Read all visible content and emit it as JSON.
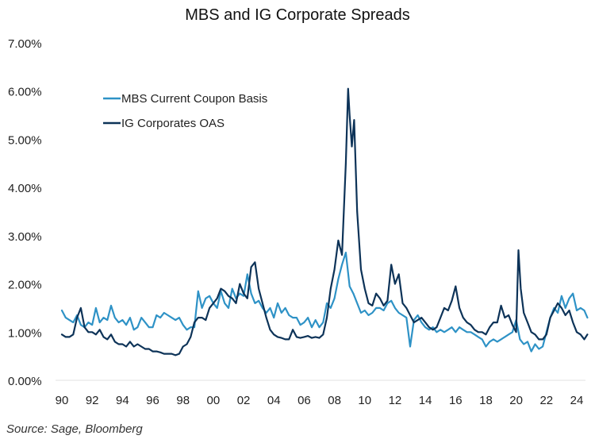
{
  "chart_data": {
    "type": "line",
    "title": "MBS and IG Corporate Spreads",
    "xlabel": "",
    "ylabel": "",
    "xlim": [
      1990,
      2024.7
    ],
    "ylim": [
      0,
      7
    ],
    "grid": false,
    "y_ticks": [
      "0.00%",
      "1.00%",
      "2.00%",
      "3.00%",
      "4.00%",
      "5.00%",
      "6.00%",
      "7.00%"
    ],
    "y_tick_values": [
      0,
      1,
      2,
      3,
      4,
      5,
      6,
      7
    ],
    "x_ticks": [
      "90",
      "92",
      "94",
      "96",
      "98",
      "00",
      "02",
      "04",
      "06",
      "08",
      "10",
      "12",
      "14",
      "16",
      "18",
      "20",
      "22",
      "24"
    ],
    "x_tick_values": [
      1990,
      1992,
      1994,
      1996,
      1998,
      2000,
      2002,
      2004,
      2006,
      2008,
      2010,
      2012,
      2014,
      2016,
      2018,
      2020,
      2022,
      2024
    ],
    "legend_position": "top-left",
    "series": [
      {
        "name": "MBS Current Coupon Basis",
        "color": "#2e92c6",
        "x": [
          1990.0,
          1990.25,
          1990.5,
          1990.75,
          1991.0,
          1991.25,
          1991.5,
          1991.75,
          1992.0,
          1992.25,
          1992.5,
          1992.75,
          1993.0,
          1993.25,
          1993.5,
          1993.75,
          1994.0,
          1994.25,
          1994.5,
          1994.75,
          1995.0,
          1995.25,
          1995.5,
          1995.75,
          1996.0,
          1996.25,
          1996.5,
          1996.75,
          1997.0,
          1997.25,
          1997.5,
          1997.75,
          1998.0,
          1998.25,
          1998.5,
          1998.75,
          1999.0,
          1999.25,
          1999.5,
          1999.75,
          2000.0,
          2000.25,
          2000.5,
          2000.75,
          2001.0,
          2001.25,
          2001.5,
          2001.75,
          2002.0,
          2002.25,
          2002.5,
          2002.75,
          2003.0,
          2003.25,
          2003.5,
          2003.75,
          2004.0,
          2004.25,
          2004.5,
          2004.75,
          2005.0,
          2005.25,
          2005.5,
          2005.75,
          2006.0,
          2006.25,
          2006.5,
          2006.75,
          2007.0,
          2007.25,
          2007.5,
          2007.75,
          2008.0,
          2008.25,
          2008.5,
          2008.75,
          2009.0,
          2009.25,
          2009.5,
          2009.75,
          2010.0,
          2010.25,
          2010.5,
          2010.75,
          2011.0,
          2011.25,
          2011.5,
          2011.75,
          2012.0,
          2012.25,
          2012.5,
          2012.75,
          2013.0,
          2013.25,
          2013.5,
          2013.75,
          2014.0,
          2014.25,
          2014.5,
          2014.75,
          2015.0,
          2015.25,
          2015.5,
          2015.75,
          2016.0,
          2016.25,
          2016.5,
          2016.75,
          2017.0,
          2017.25,
          2017.5,
          2017.75,
          2018.0,
          2018.25,
          2018.5,
          2018.75,
          2019.0,
          2019.25,
          2019.5,
          2019.75,
          2020.0,
          2020.25,
          2020.5,
          2020.75,
          2021.0,
          2021.25,
          2021.5,
          2021.75,
          2022.0,
          2022.25,
          2022.5,
          2022.75,
          2023.0,
          2023.25,
          2023.5,
          2023.75,
          2024.0,
          2024.25,
          2024.5,
          2024.7
        ],
        "values": [
          1.45,
          1.3,
          1.25,
          1.2,
          1.35,
          1.15,
          1.1,
          1.2,
          1.15,
          1.5,
          1.2,
          1.3,
          1.25,
          1.55,
          1.3,
          1.2,
          1.25,
          1.15,
          1.3,
          1.05,
          1.1,
          1.3,
          1.2,
          1.1,
          1.1,
          1.35,
          1.3,
          1.4,
          1.35,
          1.3,
          1.25,
          1.3,
          1.15,
          1.05,
          1.1,
          1.1,
          1.85,
          1.5,
          1.7,
          1.75,
          1.6,
          1.5,
          1.85,
          1.6,
          1.5,
          1.9,
          1.7,
          1.8,
          1.75,
          2.2,
          1.8,
          1.6,
          1.65,
          1.5,
          1.4,
          1.5,
          1.3,
          1.6,
          1.4,
          1.5,
          1.35,
          1.3,
          1.3,
          1.15,
          1.2,
          1.3,
          1.1,
          1.25,
          1.1,
          1.2,
          1.6,
          1.5,
          1.7,
          2.1,
          2.4,
          2.65,
          1.95,
          1.8,
          1.6,
          1.4,
          1.45,
          1.35,
          1.4,
          1.5,
          1.5,
          1.45,
          1.6,
          1.65,
          1.5,
          1.4,
          1.35,
          1.3,
          0.7,
          1.25,
          1.35,
          1.2,
          1.1,
          1.05,
          1.1,
          1.0,
          1.05,
          1.0,
          1.05,
          1.1,
          1.0,
          1.1,
          1.05,
          1.0,
          1.0,
          0.95,
          0.9,
          0.85,
          0.7,
          0.8,
          0.85,
          0.8,
          0.85,
          0.9,
          0.95,
          1.0,
          1.25,
          0.85,
          0.75,
          0.8,
          0.6,
          0.75,
          0.65,
          0.7,
          1.0,
          1.3,
          1.5,
          1.4,
          1.75,
          1.5,
          1.7,
          1.8,
          1.45,
          1.5,
          1.45,
          1.3
        ]
      },
      {
        "name": "IG Corporates OAS",
        "color": "#0d3358",
        "x": [
          1990.0,
          1990.25,
          1990.5,
          1990.75,
          1991.0,
          1991.25,
          1991.5,
          1991.75,
          1992.0,
          1992.25,
          1992.5,
          1992.75,
          1993.0,
          1993.25,
          1993.5,
          1993.75,
          1994.0,
          1994.25,
          1994.5,
          1994.75,
          1995.0,
          1995.25,
          1995.5,
          1995.75,
          1996.0,
          1996.25,
          1996.5,
          1996.75,
          1997.0,
          1997.25,
          1997.5,
          1997.75,
          1998.0,
          1998.25,
          1998.5,
          1998.75,
          1999.0,
          1999.25,
          1999.5,
          1999.75,
          2000.0,
          2000.25,
          2000.5,
          2000.75,
          2001.0,
          2001.25,
          2001.5,
          2001.75,
          2002.0,
          2002.25,
          2002.5,
          2002.75,
          2003.0,
          2003.25,
          2003.5,
          2003.75,
          2004.0,
          2004.25,
          2004.5,
          2004.75,
          2005.0,
          2005.25,
          2005.5,
          2005.75,
          2006.0,
          2006.25,
          2006.5,
          2006.75,
          2007.0,
          2007.25,
          2007.5,
          2007.75,
          2008.0,
          2008.25,
          2008.5,
          2008.75,
          2008.9,
          2009.0,
          2009.15,
          2009.3,
          2009.5,
          2009.75,
          2010.0,
          2010.25,
          2010.5,
          2010.75,
          2011.0,
          2011.25,
          2011.5,
          2011.75,
          2012.0,
          2012.25,
          2012.5,
          2012.75,
          2013.0,
          2013.25,
          2013.5,
          2013.75,
          2014.0,
          2014.25,
          2014.5,
          2014.75,
          2015.0,
          2015.25,
          2015.5,
          2015.75,
          2016.0,
          2016.25,
          2016.5,
          2016.75,
          2017.0,
          2017.25,
          2017.5,
          2017.75,
          2018.0,
          2018.25,
          2018.5,
          2018.75,
          2019.0,
          2019.25,
          2019.5,
          2019.75,
          2020.0,
          2020.15,
          2020.3,
          2020.5,
          2020.75,
          2021.0,
          2021.25,
          2021.5,
          2021.75,
          2022.0,
          2022.25,
          2022.5,
          2022.75,
          2023.0,
          2023.25,
          2023.5,
          2023.75,
          2024.0,
          2024.25,
          2024.5,
          2024.7
        ],
        "values": [
          0.95,
          0.9,
          0.9,
          0.95,
          1.3,
          1.5,
          1.1,
          1.0,
          1.0,
          0.95,
          1.05,
          0.9,
          0.85,
          0.95,
          0.8,
          0.75,
          0.75,
          0.7,
          0.8,
          0.7,
          0.75,
          0.7,
          0.65,
          0.65,
          0.6,
          0.6,
          0.58,
          0.55,
          0.55,
          0.55,
          0.52,
          0.55,
          0.7,
          0.75,
          0.9,
          1.2,
          1.3,
          1.3,
          1.25,
          1.5,
          1.6,
          1.7,
          1.9,
          1.85,
          1.75,
          1.7,
          1.6,
          2.0,
          1.8,
          1.7,
          2.35,
          2.45,
          1.9,
          1.6,
          1.3,
          1.05,
          0.95,
          0.9,
          0.88,
          0.85,
          0.85,
          1.05,
          0.9,
          0.88,
          0.9,
          0.92,
          0.88,
          0.9,
          0.88,
          0.95,
          1.3,
          1.9,
          2.3,
          2.9,
          2.6,
          4.5,
          6.05,
          5.5,
          4.85,
          5.4,
          3.5,
          2.3,
          1.9,
          1.6,
          1.55,
          1.8,
          1.7,
          1.55,
          1.65,
          2.4,
          2.0,
          2.2,
          1.6,
          1.5,
          1.35,
          1.2,
          1.25,
          1.3,
          1.2,
          1.1,
          1.05,
          1.1,
          1.3,
          1.5,
          1.45,
          1.65,
          1.95,
          1.5,
          1.3,
          1.2,
          1.15,
          1.05,
          1.0,
          1.0,
          0.95,
          1.1,
          1.2,
          1.2,
          1.55,
          1.3,
          1.35,
          1.15,
          1.0,
          2.7,
          1.9,
          1.4,
          1.2,
          1.0,
          0.95,
          0.85,
          0.85,
          0.95,
          1.3,
          1.45,
          1.6,
          1.5,
          1.35,
          1.45,
          1.2,
          1.0,
          0.95,
          0.85,
          0.95
        ]
      }
    ]
  },
  "source_note": "Source: Sage, Bloomberg"
}
